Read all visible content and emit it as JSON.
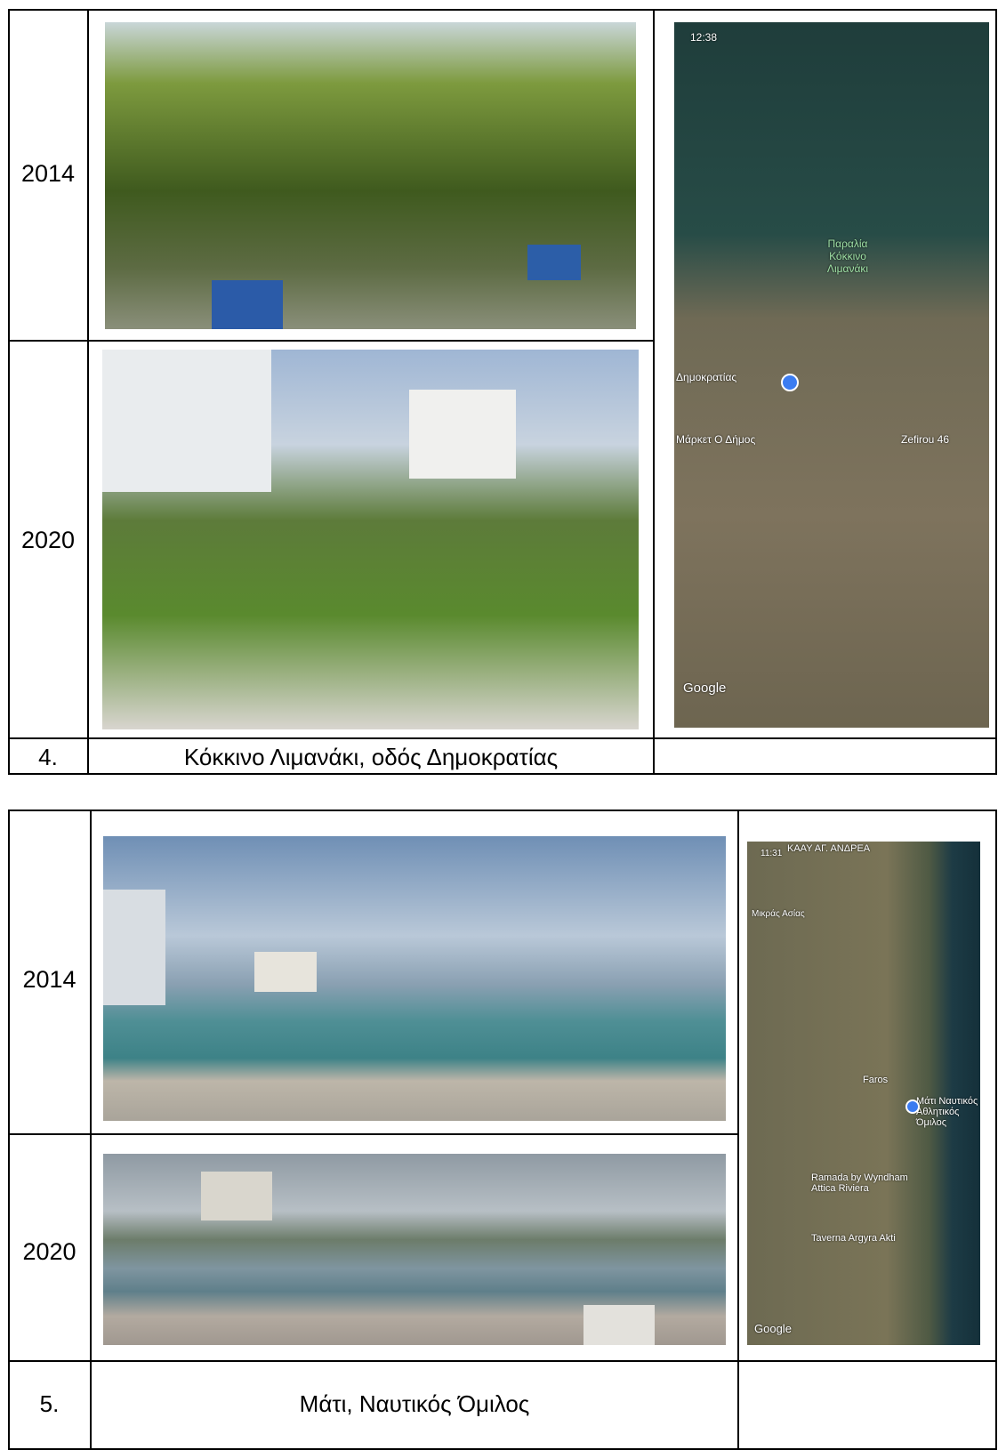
{
  "tables": [
    {
      "rows": [
        {
          "year": "2014"
        },
        {
          "year": "2020"
        }
      ],
      "number": "4.",
      "caption": "Κόκκινο Λιμανάκι, οδός Δημοκρατίας",
      "map_labels": [
        "12:38",
        "Παραλία Κόκκινο Λιμανάκι",
        "Δημοκρατίας",
        "Μάρκετ Ο Δήμος",
        "Zefirou 46",
        "Google"
      ]
    },
    {
      "rows": [
        {
          "year": "2014"
        },
        {
          "year": "2020"
        }
      ],
      "number": "5.",
      "caption": "Μάτι, Ναυτικός Όμιλος",
      "map_labels": [
        "11:31",
        "ΚΑΑΥ ΑΓ. ΑΝΔΡΕΑ",
        "Μικράς Ασίας",
        "Faros",
        "Μάτι Ναυτικός Αθλητικός Όμιλος",
        "Ramada by Wyndham Attica Riviera",
        "Taverna Argyra Akti",
        "Google"
      ]
    }
  ]
}
